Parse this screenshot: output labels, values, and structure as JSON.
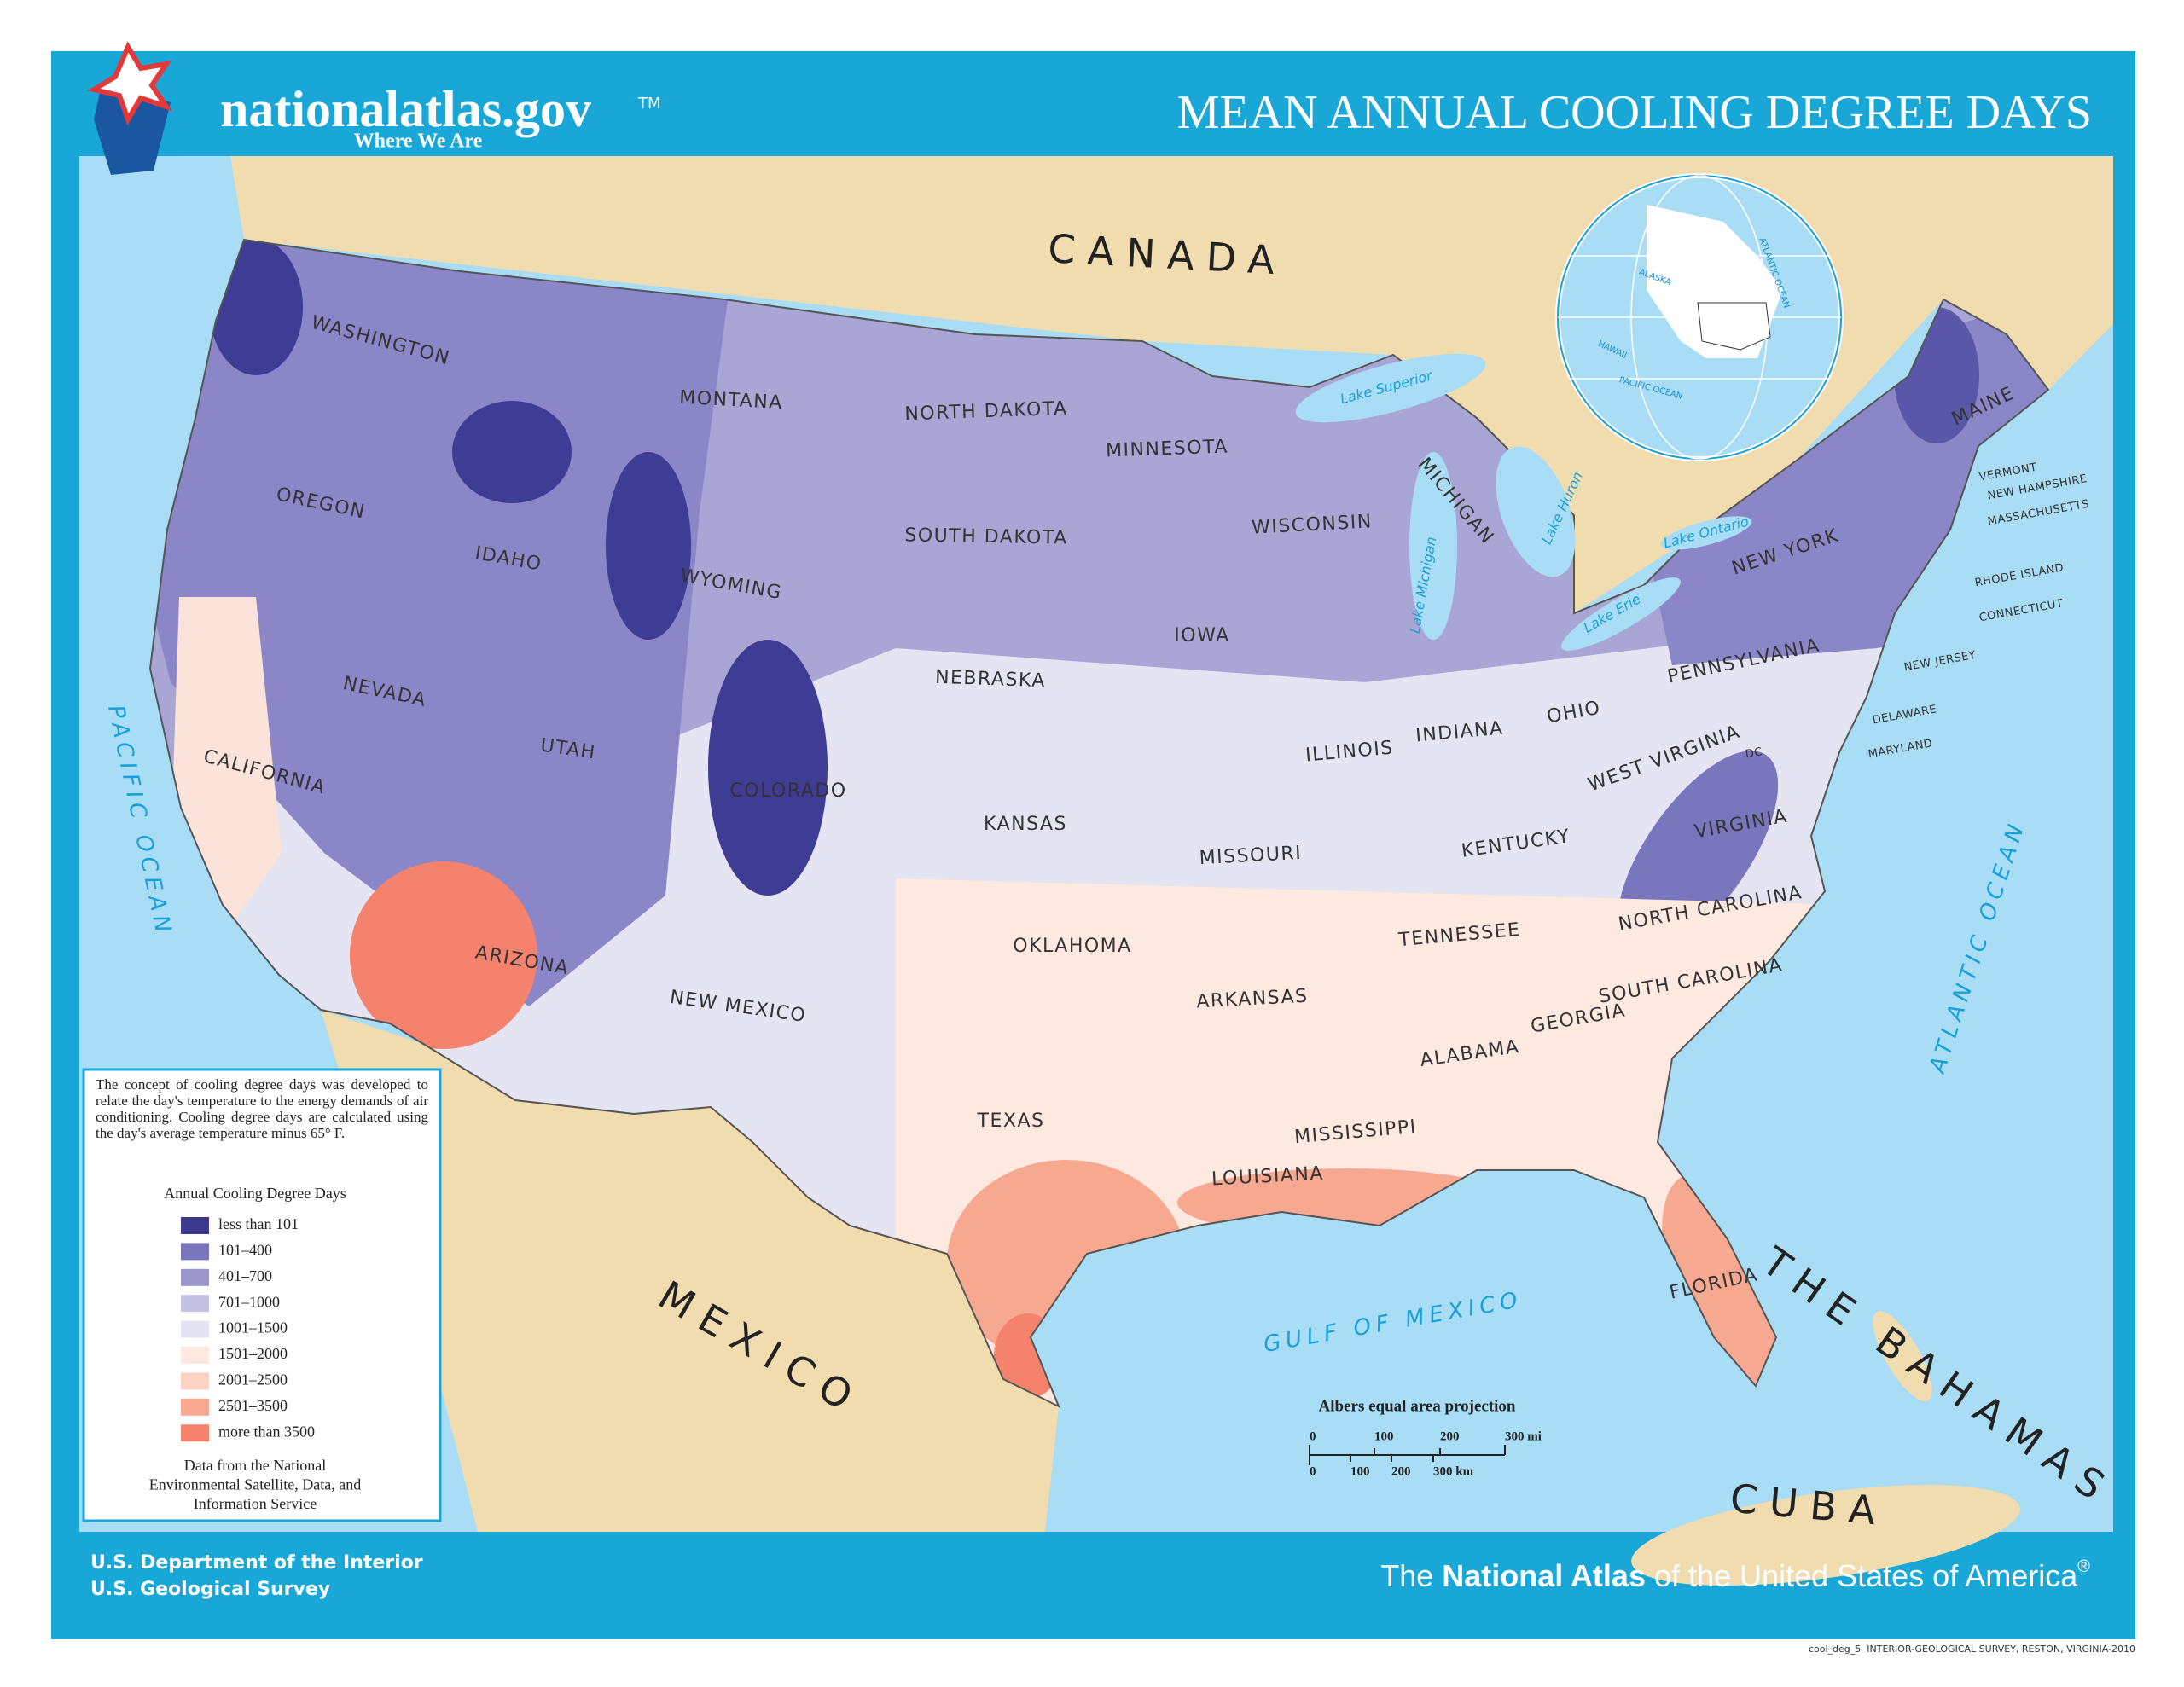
{
  "header": {
    "logo": "nationalatlas.gov",
    "trademark": "TM",
    "tagline": "Where We Are",
    "title": "MEAN ANNUAL COOLING DEGREE DAYS"
  },
  "map": {
    "countries": [
      "CANADA",
      "MEXICO",
      "CUBA",
      "THE BAHAMAS"
    ],
    "water": [
      "PACIFIC OCEAN",
      "ATLANTIC OCEAN",
      "GULF OF MEXICO",
      "Lake Superior",
      "Lake Michigan",
      "Lake Huron",
      "Lake Erie",
      "Lake Ontario"
    ],
    "states": [
      "WASHINGTON",
      "MONTANA",
      "NORTH DAKOTA",
      "MINNESOTA",
      "OREGON",
      "IDAHO",
      "WYOMING",
      "SOUTH DAKOTA",
      "WISCONSIN",
      "MICHIGAN",
      "NEW YORK",
      "MAINE",
      "NEVADA",
      "UTAH",
      "COLORADO",
      "NEBRASKA",
      "IOWA",
      "ILLINOIS",
      "INDIANA",
      "OHIO",
      "PENNSYLVANIA",
      "CALIFORNIA",
      "KANSAS",
      "MISSOURI",
      "KENTUCKY",
      "WEST VIRGINIA",
      "VIRGINIA",
      "ARIZONA",
      "NEW MEXICO",
      "OKLAHOMA",
      "ARKANSAS",
      "TENNESSEE",
      "NORTH CAROLINA",
      "SOUTH CAROLINA",
      "GEORGIA",
      "ALABAMA",
      "MISSISSIPPI",
      "LOUISIANA",
      "TEXAS",
      "FLORIDA",
      "VERMONT",
      "NEW HAMPSHIRE",
      "MASSACHUSETTS",
      "RHODE ISLAND",
      "CONNECTICUT",
      "NEW JERSEY",
      "DELAWARE",
      "MARYLAND",
      "DC"
    ],
    "globe": [
      "ALASKA",
      "HAWAII",
      "PACIFIC OCEAN",
      "ATLANTIC OCEAN"
    ]
  },
  "legend": {
    "note": "The concept of cooling degree days was developed to relate the day's temperature to the energy demands of air conditioning. Cooling degree days are calculated using the day's average temperature minus 65° F.",
    "title": "Annual Cooling Degree Days",
    "items": [
      {
        "label": "less than 101",
        "color": "#3c3a8f"
      },
      {
        "label": "101–400",
        "color": "#7a76bd"
      },
      {
        "label": "401–700",
        "color": "#9b97cc"
      },
      {
        "label": "701–1000",
        "color": "#c4c2e2"
      },
      {
        "label": "1001–1500",
        "color": "#e4e4f3"
      },
      {
        "label": "1501–2000",
        "color": "#fde9e0"
      },
      {
        "label": "2001–2500",
        "color": "#fbd2c3"
      },
      {
        "label": "2501–3500",
        "color": "#f7a891"
      },
      {
        "label": "more than 3500",
        "color": "#f4826c"
      }
    ],
    "source": [
      "Data from the National",
      "Environmental Satellite, Data, and",
      "Information Service"
    ]
  },
  "scale": {
    "projection": "Albers equal area projection",
    "miles": [
      "0",
      "100",
      "200",
      "300 mi"
    ],
    "km": [
      "0",
      "100",
      "200",
      "300 km"
    ]
  },
  "footer": {
    "agency": [
      "U.S. Department of the Interior",
      "U.S. Geological Survey"
    ],
    "atlas": [
      "The ",
      "National Atlas",
      " of the United States of America",
      "®"
    ],
    "credit": "cool_deg_5  INTERIOR-GEOLOGICAL SURVEY, RESTON, VIRGINIA-2010"
  }
}
